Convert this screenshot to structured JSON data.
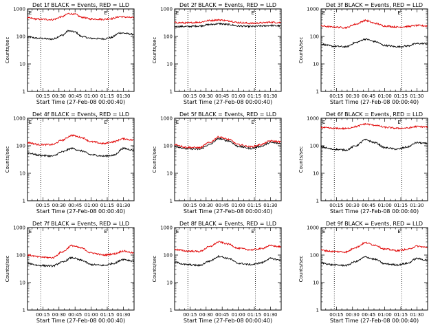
{
  "figure": {
    "background": "#ffffff",
    "event_color": "#000000",
    "lld_color": "#e00000"
  },
  "chart_data": [
    {
      "type": "line",
      "title": "Det 1f BLACK = Events, RED = LLD",
      "xlabel": "Start Time (27-Feb-08 00:00:40)",
      "ylabel": "Counts/sec",
      "ylim": [
        1,
        1000
      ],
      "y_scale": "log",
      "xlim": [
        "00:00:40",
        "01:40:00"
      ],
      "grid": false,
      "xticks": [
        "00:15",
        "00:30",
        "00:45",
        "01:00",
        "01:15",
        "01:30"
      ],
      "yticks": [
        "1",
        "10",
        "100",
        "1000"
      ],
      "event_markers": [
        "E",
        "E"
      ],
      "vlines": [
        "00:13",
        "01:16"
      ],
      "series": [
        {
          "name": "BLACK = Events",
          "color": "#000000",
          "time_hours": [
            0.01,
            0.2,
            0.4,
            0.55,
            0.65,
            0.75,
            0.85,
            1.0,
            1.2,
            1.3,
            1.45,
            1.66
          ],
          "values": [
            95,
            85,
            80,
            110,
            160,
            145,
            100,
            85,
            82,
            90,
            135,
            120
          ]
        },
        {
          "name": "RED = LLD",
          "color": "#e00000",
          "time_hours": [
            0.01,
            0.2,
            0.4,
            0.55,
            0.65,
            0.75,
            0.85,
            1.0,
            1.2,
            1.3,
            1.45,
            1.66
          ],
          "values": [
            470,
            420,
            410,
            520,
            680,
            640,
            500,
            430,
            420,
            440,
            520,
            480
          ]
        }
      ]
    },
    {
      "type": "line",
      "title": "Det 2f BLACK = Events, RED = LLD",
      "xlabel": "Start Time (27-Feb-08 00:00:40)",
      "ylabel": "Counts/sec",
      "ylim": [
        1,
        1000
      ],
      "y_scale": "log",
      "xlim": [
        "00:00:40",
        "01:40:00"
      ],
      "grid": false,
      "xticks": [
        "00:15",
        "00:30",
        "00:45",
        "01:00",
        "01:15",
        "01:30"
      ],
      "yticks": [
        "1",
        "10",
        "100",
        "1000"
      ],
      "event_markers": [
        "E",
        "E"
      ],
      "vlines": [
        "00:13",
        "01:16"
      ],
      "series": [
        {
          "name": "BLACK = Events",
          "color": "#000000",
          "time_hours": [
            0.01,
            0.2,
            0.4,
            0.55,
            0.7,
            0.85,
            1.0,
            1.2,
            1.35,
            1.5,
            1.66
          ],
          "values": [
            230,
            230,
            240,
            270,
            290,
            270,
            240,
            230,
            240,
            250,
            240
          ]
        },
        {
          "name": "RED = LLD",
          "color": "#e00000",
          "time_hours": [
            0.01,
            0.2,
            0.4,
            0.55,
            0.7,
            0.85,
            1.0,
            1.2,
            1.35,
            1.5,
            1.66
          ],
          "values": [
            320,
            310,
            330,
            380,
            400,
            370,
            320,
            300,
            310,
            330,
            320
          ]
        }
      ]
    },
    {
      "type": "line",
      "title": "Det 3f BLACK = Events, RED = LLD",
      "xlabel": "Start Time (27-Feb-08 00:00:40)",
      "ylabel": "Counts/sec",
      "ylim": [
        1,
        1000
      ],
      "y_scale": "log",
      "xlim": [
        "00:00:40",
        "01:40:00"
      ],
      "grid": false,
      "xticks": [
        "00:15",
        "00:30",
        "00:45",
        "01:00",
        "01:15",
        "01:30"
      ],
      "yticks": [
        "1",
        "10",
        "100",
        "1000"
      ],
      "event_markers": [
        "E",
        "E"
      ],
      "vlines": [
        "00:13",
        "01:16"
      ],
      "series": [
        {
          "name": "BLACK = Events",
          "color": "#000000",
          "time_hours": [
            0.01,
            0.2,
            0.4,
            0.55,
            0.7,
            0.85,
            1.0,
            1.2,
            1.35,
            1.5,
            1.66
          ],
          "values": [
            52,
            44,
            42,
            60,
            80,
            65,
            47,
            42,
            45,
            55,
            55
          ]
        },
        {
          "name": "RED = LLD",
          "color": "#e00000",
          "time_hours": [
            0.01,
            0.2,
            0.4,
            0.55,
            0.7,
            0.85,
            1.0,
            1.2,
            1.35,
            1.5,
            1.66
          ],
          "values": [
            240,
            220,
            210,
            280,
            380,
            300,
            240,
            220,
            230,
            250,
            240
          ]
        }
      ]
    },
    {
      "type": "line",
      "title": "Det 4f BLACK = Events, RED = LLD",
      "xlabel": "Start Time (27-Feb-08 00:00:40)",
      "ylabel": "Counts/sec",
      "ylim": [
        1,
        1000
      ],
      "y_scale": "log",
      "xlim": [
        "00:00:40",
        "01:40:00"
      ],
      "grid": false,
      "xticks": [
        "00:15",
        "00:30",
        "00:45",
        "01:00",
        "01:15",
        "01:30"
      ],
      "yticks": [
        "1",
        "10",
        "100",
        "1000"
      ],
      "event_markers": [
        "E",
        "E"
      ],
      "vlines": [
        "00:13",
        "01:16"
      ],
      "series": [
        {
          "name": "BLACK = Events",
          "color": "#000000",
          "time_hours": [
            0.01,
            0.2,
            0.4,
            0.55,
            0.7,
            0.85,
            1.0,
            1.2,
            1.35,
            1.5,
            1.66
          ],
          "values": [
            55,
            45,
            42,
            60,
            80,
            65,
            47,
            42,
            45,
            80,
            70
          ]
        },
        {
          "name": "RED = LLD",
          "color": "#e00000",
          "time_hours": [
            0.01,
            0.2,
            0.4,
            0.55,
            0.7,
            0.85,
            1.0,
            1.2,
            1.35,
            1.5,
            1.66
          ],
          "values": [
            130,
            110,
            110,
            160,
            240,
            200,
            140,
            120,
            140,
            180,
            160
          ]
        }
      ]
    },
    {
      "type": "line",
      "title": "Det 5f BLACK = Events, RED = LLD",
      "xlabel": "Start Time (27-Feb-08 00:00:40)",
      "ylabel": "Counts/sec",
      "ylim": [
        1,
        1000
      ],
      "y_scale": "log",
      "xlim": [
        "00:00:40",
        "01:40:00"
      ],
      "grid": false,
      "xticks": [
        "00:15",
        "00:30",
        "00:45",
        "01:00",
        "01:15",
        "01:30"
      ],
      "yticks": [
        "1",
        "10",
        "100",
        "1000"
      ],
      "event_markers": [
        "E",
        "E"
      ],
      "vlines": [
        "00:13",
        "01:16"
      ],
      "series": [
        {
          "name": "BLACK = Events",
          "color": "#000000",
          "time_hours": [
            0.01,
            0.2,
            0.4,
            0.55,
            0.7,
            0.85,
            1.0,
            1.2,
            1.35,
            1.5,
            1.66
          ],
          "values": [
            95,
            78,
            75,
            110,
            180,
            150,
            95,
            80,
            95,
            130,
            120
          ]
        },
        {
          "name": "RED = LLD",
          "color": "#e00000",
          "time_hours": [
            0.01,
            0.2,
            0.4,
            0.55,
            0.7,
            0.85,
            1.0,
            1.2,
            1.35,
            1.5,
            1.66
          ],
          "values": [
            110,
            88,
            85,
            130,
            210,
            170,
            110,
            92,
            110,
            150,
            140
          ]
        }
      ]
    },
    {
      "type": "line",
      "title": "Det 6f BLACK = Events, RED = LLD",
      "xlabel": "Start Time (27-Feb-08 00:00:40)",
      "ylabel": "Counts/sec",
      "ylim": [
        1,
        1000
      ],
      "y_scale": "log",
      "xlim": [
        "00:00:40",
        "01:40:00"
      ],
      "grid": false,
      "xticks": [
        "00:15",
        "00:30",
        "00:45",
        "01:00",
        "01:15",
        "01:30"
      ],
      "yticks": [
        "1",
        "10",
        "100",
        "1000"
      ],
      "event_markers": [
        "E",
        "E"
      ],
      "vlines": [
        "00:13",
        "01:16"
      ],
      "series": [
        {
          "name": "BLACK = Events",
          "color": "#000000",
          "time_hours": [
            0.01,
            0.2,
            0.4,
            0.55,
            0.7,
            0.85,
            1.0,
            1.2,
            1.35,
            1.5,
            1.66
          ],
          "values": [
            90,
            75,
            70,
            100,
            165,
            130,
            85,
            75,
            90,
            130,
            120
          ]
        },
        {
          "name": "RED = LLD",
          "color": "#e00000",
          "time_hours": [
            0.01,
            0.2,
            0.4,
            0.55,
            0.7,
            0.85,
            1.0,
            1.2,
            1.35,
            1.5,
            1.66
          ],
          "values": [
            460,
            430,
            420,
            500,
            620,
            560,
            470,
            430,
            440,
            500,
            480
          ]
        }
      ]
    },
    {
      "type": "line",
      "title": "Det 7f BLACK = Events, RED = LLD",
      "xlabel": "Start Time (27-Feb-08 00:00:40)",
      "ylabel": "Counts/sec",
      "ylim": [
        1,
        1000
      ],
      "y_scale": "log",
      "xlim": [
        "00:00:40",
        "01:40:00"
      ],
      "grid": false,
      "xticks": [
        "00:15",
        "00:30",
        "00:45",
        "01:00",
        "01:15",
        "01:30"
      ],
      "yticks": [
        "1",
        "10",
        "100",
        "1000"
      ],
      "event_markers": [
        "E",
        "E"
      ],
      "vlines": [
        "00:13",
        "01:16"
      ],
      "series": [
        {
          "name": "BLACK = Events",
          "color": "#000000",
          "time_hours": [
            0.01,
            0.2,
            0.4,
            0.55,
            0.7,
            0.85,
            1.0,
            1.2,
            1.35,
            1.5,
            1.66
          ],
          "values": [
            50,
            42,
            40,
            55,
            80,
            65,
            45,
            42,
            50,
            70,
            60
          ]
        },
        {
          "name": "RED = LLD",
          "color": "#e00000",
          "time_hours": [
            0.01,
            0.2,
            0.4,
            0.55,
            0.7,
            0.85,
            1.0,
            1.2,
            1.35,
            1.5,
            1.66
          ],
          "values": [
            100,
            85,
            80,
            130,
            220,
            180,
            120,
            100,
            110,
            140,
            120
          ]
        }
      ]
    },
    {
      "type": "line",
      "title": "Det 8f BLACK = Events, RED = LLD",
      "xlabel": "Start Time (27-Feb-08 00:00:40)",
      "ylabel": "Counts/sec",
      "ylim": [
        1,
        1000
      ],
      "y_scale": "log",
      "xlim": [
        "00:00:40",
        "01:40:00"
      ],
      "grid": false,
      "xticks": [
        "00:15",
        "00:30",
        "00:45",
        "01:00",
        "01:15",
        "01:30"
      ],
      "yticks": [
        "1",
        "10",
        "100",
        "1000"
      ],
      "event_markers": [
        "E",
        "E"
      ],
      "vlines": [
        "00:13",
        "01:16"
      ],
      "series": [
        {
          "name": "BLACK = Events",
          "color": "#000000",
          "time_hours": [
            0.01,
            0.2,
            0.4,
            0.55,
            0.7,
            0.85,
            1.0,
            1.2,
            1.35,
            1.5,
            1.66
          ],
          "values": [
            55,
            45,
            42,
            60,
            90,
            75,
            50,
            45,
            52,
            75,
            65
          ]
        },
        {
          "name": "RED = LLD",
          "color": "#e00000",
          "time_hours": [
            0.01,
            0.2,
            0.4,
            0.55,
            0.7,
            0.85,
            1.0,
            1.2,
            1.35,
            1.5,
            1.66
          ],
          "values": [
            160,
            140,
            135,
            200,
            300,
            250,
            175,
            155,
            170,
            220,
            200
          ]
        }
      ]
    },
    {
      "type": "line",
      "title": "Det 9f BLACK = Events, RED = LLD",
      "xlabel": "Start Time (27-Feb-08 00:00:40)",
      "ylabel": "Counts/sec",
      "ylim": [
        1,
        1000
      ],
      "y_scale": "log",
      "xlim": [
        "00:00:40",
        "01:40:00"
      ],
      "grid": false,
      "xticks": [
        "00:15",
        "00:30",
        "00:45",
        "01:00",
        "01:15",
        "01:30"
      ],
      "yticks": [
        "1",
        "10",
        "100",
        "1000"
      ],
      "event_markers": [
        "E",
        "E"
      ],
      "vlines": [
        "00:13",
        "01:16"
      ],
      "series": [
        {
          "name": "BLACK = Events",
          "color": "#000000",
          "time_hours": [
            0.01,
            0.2,
            0.4,
            0.55,
            0.7,
            0.85,
            1.0,
            1.2,
            1.35,
            1.5,
            1.66
          ],
          "values": [
            52,
            44,
            42,
            58,
            85,
            70,
            48,
            44,
            50,
            75,
            65
          ]
        },
        {
          "name": "RED = LLD",
          "color": "#e00000",
          "time_hours": [
            0.01,
            0.2,
            0.4,
            0.55,
            0.7,
            0.85,
            1.0,
            1.2,
            1.35,
            1.5,
            1.66
          ],
          "values": [
            150,
            135,
            130,
            190,
            280,
            230,
            165,
            145,
            160,
            210,
            190
          ]
        }
      ]
    }
  ]
}
